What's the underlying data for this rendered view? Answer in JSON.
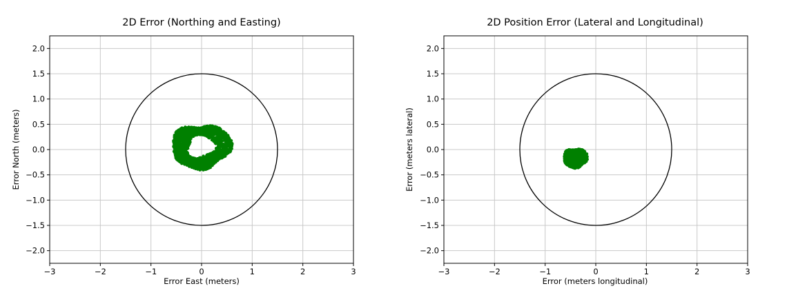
{
  "figure": {
    "background": "#ffffff",
    "text_color": "#000000"
  },
  "chart_data": [
    {
      "type": "scatter",
      "title": "2D Error (Northing and Easting)",
      "xlabel": "Error East (meters)",
      "ylabel": "Error North (meters)",
      "xlim": [
        -3,
        3
      ],
      "ylim": [
        -2.25,
        2.25
      ],
      "x_ticks": [
        -3,
        -2,
        -1,
        0,
        1,
        2,
        3
      ],
      "x_tick_labels": [
        "−3",
        "−2",
        "−1",
        "0",
        "1",
        "2",
        "3"
      ],
      "y_ticks": [
        2.0,
        1.5,
        1.0,
        0.5,
        0.0,
        -0.5,
        -1.0,
        -1.5,
        -2.0
      ],
      "y_tick_labels": [
        "2.0",
        "1.5",
        "1.0",
        "0.5",
        "0.0",
        "−0.5",
        "−1.0",
        "−1.5",
        "−2.0"
      ],
      "grid": true,
      "colors": {
        "grid": "#c8c8c8",
        "spine": "#000000",
        "text": "#000000"
      },
      "reference_circle": {
        "cx": 0,
        "cy": 0,
        "r": 1.5,
        "color": "#000000"
      },
      "cluster": {
        "shape": "ring",
        "center": [
          -0.01,
          0.06
        ],
        "r_inner": 0.23,
        "r_outer": 0.47,
        "x_stretch": 1.13,
        "extent_x": [
          -0.58,
          0.58
        ],
        "extent_y": [
          -0.44,
          0.56
        ],
        "n_points": 1700,
        "seed": 12,
        "color": "#008000",
        "point_radius_px": 2.2
      }
    },
    {
      "type": "scatter",
      "title": "2D Position Error (Lateral and Longitudinal)",
      "xlabel": "Error (meters longitudinal)",
      "ylabel": "Error (meters lateral)",
      "xlim": [
        -3,
        3
      ],
      "ylim": [
        -2.25,
        2.25
      ],
      "x_ticks": [
        -3,
        -2,
        -1,
        0,
        1,
        2,
        3
      ],
      "x_tick_labels": [
        "−3",
        "−2",
        "−1",
        "0",
        "1",
        "2",
        "3"
      ],
      "y_ticks": [
        2.0,
        1.5,
        1.0,
        0.5,
        0.0,
        -0.5,
        -1.0,
        -1.5,
        -2.0
      ],
      "y_tick_labels": [
        "2.0",
        "1.5",
        "1.0",
        "0.5",
        "0.0",
        "−0.5",
        "−1.0",
        "−1.5",
        "−2.0"
      ],
      "grid": true,
      "colors": {
        "grid": "#c8c8c8",
        "spine": "#000000",
        "text": "#000000"
      },
      "reference_circle": {
        "cx": 0,
        "cy": 0,
        "r": 1.5,
        "color": "#000000"
      },
      "cluster": {
        "shape": "blob",
        "center": [
          -0.4,
          -0.17
        ],
        "r_inner": 0,
        "r_outer": 0.205,
        "x_stretch": 1.05,
        "extent_x": [
          -0.61,
          -0.17
        ],
        "extent_y": [
          -0.38,
          0.03
        ],
        "n_points": 800,
        "seed": 5,
        "color": "#008000",
        "point_radius_px": 2.2
      }
    }
  ]
}
